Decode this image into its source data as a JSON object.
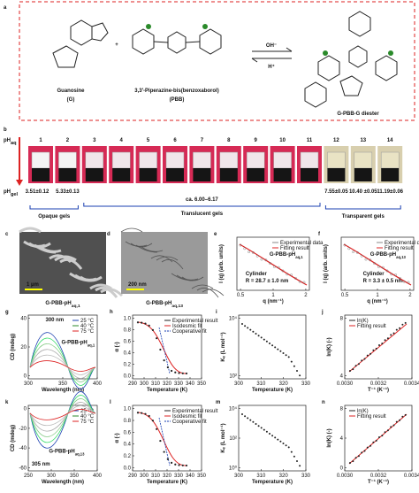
{
  "panel_a": {
    "label": "a",
    "reactant1": "Guanosine",
    "reactant1_abbr": "(G)",
    "plus": "+",
    "reactant2": "3,3′-Piperazine-bis(benzoxaborol)",
    "reactant2_abbr": "(PBB)",
    "forward": "OH⁻",
    "backward": "H⁺",
    "product": "G-PBB-G diester"
  },
  "panel_b": {
    "label": "b",
    "ph_aq_label": {
      "text": "pH",
      "sub": "aq"
    },
    "ph_aq_values": [
      "1",
      "2",
      "3",
      "4",
      "5",
      "6",
      "7",
      "8",
      "9",
      "10",
      "11",
      "12",
      "13",
      "14"
    ],
    "ph_gel_label": {
      "text": "pH",
      "sub": "gel"
    },
    "ph_gel_values": [
      "3.51±0.12",
      "5.33±0.13",
      "ca. 6.00–6.17",
      "7.55±0.05",
      "10.40 ±0.05",
      "11.19±0.06"
    ],
    "groups": [
      "Opaque gels",
      "Translucent gels",
      "Transparent gels"
    ]
  },
  "panel_c": {
    "label": "c",
    "scale": "1 µm",
    "caption": {
      "text": "G-PBB-pH",
      "sub": "aq,1"
    }
  },
  "panel_d": {
    "label": "d",
    "scale": "200 nm",
    "caption": {
      "text": "G-PBB-pH",
      "sub": "aq,13"
    }
  },
  "plots": [
    {
      "label": "e",
      "x_title": "q (nm⁻¹)",
      "y_title": "I (q) (arb. units)",
      "xticks": [
        "0.5",
        "1",
        "2"
      ],
      "yticks": [],
      "legend": [
        "Experimental data",
        "Fitting result"
      ],
      "annotations": [
        {
          "text": "G-PBB-pH",
          "sub": "aq,1"
        },
        {
          "text": "Cylinder"
        },
        {
          "text": "R = 28.7 ± 1.0 nm"
        }
      ]
    },
    {
      "label": "f",
      "x_title": "q (nm⁻¹)",
      "y_title": "I (q) (arb. units)",
      "xticks": [
        "0.5",
        "1",
        "2"
      ],
      "yticks": [],
      "legend": [
        "Experimental data",
        "Fitting result"
      ],
      "annotations": [
        {
          "text": "G-PBB-pH",
          "sub": "aq,13"
        },
        {
          "text": "Cylinder"
        },
        {
          "text": "R = 3.3 ± 0.5 nm"
        }
      ]
    },
    {
      "label": "g",
      "x_title": "Wavelength (nm)",
      "y_title": "CD (mdeg)",
      "xticks": [
        "300",
        "350",
        "400"
      ],
      "yticks": [
        "40",
        "20",
        "0"
      ],
      "legend": [
        "25 °C",
        "40 °C",
        "75 °C"
      ],
      "annotations": [
        {
          "text": "300 nm"
        },
        {
          "text": "G-PBB-pH",
          "sub": "aq,1"
        }
      ]
    },
    {
      "label": "h",
      "x_title": "Temperature (K)",
      "y_title": "α (-)",
      "xticks": [
        "290",
        "300",
        "310",
        "320",
        "330",
        "340",
        "350"
      ],
      "yticks": [
        "1.0",
        "0.8",
        "0.6",
        "0.4",
        "0.2",
        "0.0"
      ],
      "legend": [
        "Experimental result",
        "Isodesmic fit",
        "Cooperative fit"
      ],
      "annotations": []
    },
    {
      "label": "i",
      "x_title": "Temperature (K)",
      "y_title": "Kₑ (L mol⁻¹)",
      "xticks": [
        "300",
        "310",
        "320",
        "330"
      ],
      "yticks": [
        "10⁴",
        "10²"
      ],
      "legend": [],
      "annotations": []
    },
    {
      "label": "j",
      "x_title": "T⁻¹ (K⁻¹)",
      "y_title": "ln(K) (-)",
      "xticks": [
        "0.0030",
        "0.0032",
        "0.0034"
      ],
      "yticks": [
        "8",
        "4"
      ],
      "legend": [
        "ln(K)",
        "Fitting result"
      ],
      "annotations": []
    },
    {
      "label": "k",
      "x_title": "Wavelength (nm)",
      "y_title": "CD (mdeg)",
      "xticks": [
        "250",
        "300",
        "350",
        "400"
      ],
      "yticks": [
        "0",
        "-20",
        "-40",
        "-60"
      ],
      "legend": [
        "25 °C",
        "40 °C",
        "75 °C"
      ],
      "annotations": [
        {
          "text": "305 nm"
        },
        {
          "text": "G-PBB-pH",
          "sub": "aq,13"
        }
      ]
    },
    {
      "label": "l",
      "x_title": "Temperature (K)",
      "y_title": "α (-)",
      "xticks": [
        "290",
        "300",
        "310",
        "320",
        "330",
        "340",
        "350"
      ],
      "yticks": [
        "1.0",
        "0.8",
        "0.6",
        "0.4",
        "0.2",
        "0.0"
      ],
      "legend": [
        "Experimental result",
        "Isodesmic fit",
        "Cooperative fit"
      ],
      "annotations": []
    },
    {
      "label": "m",
      "x_title": "Temperature (K)",
      "y_title": "Kₑ (L mol⁻¹)",
      "xticks": [
        "300",
        "310",
        "320",
        "330"
      ],
      "yticks": [
        "10⁴",
        "10²",
        "10⁰"
      ],
      "legend": [],
      "annotations": []
    },
    {
      "label": "n",
      "x_title": "T⁻¹ (K⁻¹)",
      "y_title": "ln(K) (-)",
      "xticks": [
        "0.0030",
        "0.0032",
        "0.0034"
      ],
      "yticks": [
        "8",
        "4",
        "0"
      ],
      "legend": [
        "ln(K)",
        "Fitting result"
      ],
      "annotations": []
    }
  ]
}
